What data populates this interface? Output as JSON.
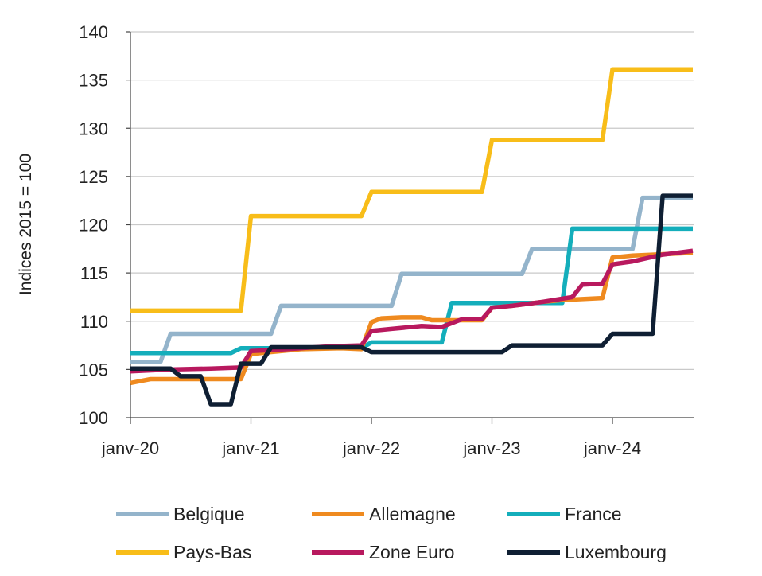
{
  "chart_data": {
    "type": "line",
    "title": "",
    "xlabel": "",
    "ylabel": "Indices 2015 = 100",
    "ylim": [
      100,
      140
    ],
    "yticks": [
      "100",
      "105",
      "110",
      "115",
      "120",
      "125",
      "130",
      "135",
      "140"
    ],
    "xlim": [
      "2020-01",
      "2024-09"
    ],
    "xticks": [
      {
        "label": "janv-20",
        "at": "2020-01"
      },
      {
        "label": "janv-21",
        "at": "2021-01"
      },
      {
        "label": "janv-22",
        "at": "2022-01"
      },
      {
        "label": "janv-23",
        "at": "2023-01"
      },
      {
        "label": "janv-24",
        "at": "2024-01"
      }
    ],
    "grid": "horizontal",
    "legend": "bottom",
    "series": [
      {
        "name": "Pays-Bas",
        "color": "#f8bd19",
        "points": [
          [
            "2020-01",
            111.1
          ],
          [
            "2020-12",
            111.1
          ],
          [
            "2021-01",
            120.9
          ],
          [
            "2021-12",
            120.9
          ],
          [
            "2022-01",
            123.4
          ],
          [
            "2022-12",
            123.4
          ],
          [
            "2023-01",
            128.8
          ],
          [
            "2023-12",
            128.8
          ],
          [
            "2024-01",
            136.1
          ],
          [
            "2024-09",
            136.1
          ]
        ]
      },
      {
        "name": "Belgique",
        "color": "#94b4cb",
        "points": [
          [
            "2020-01",
            105.8
          ],
          [
            "2020-04",
            105.8
          ],
          [
            "2020-05",
            108.7
          ],
          [
            "2020-12",
            108.7
          ],
          [
            "2021-01",
            108.7
          ],
          [
            "2021-03",
            108.7
          ],
          [
            "2021-04",
            111.6
          ],
          [
            "2021-12",
            111.6
          ],
          [
            "2022-01",
            111.6
          ],
          [
            "2022-03",
            111.6
          ],
          [
            "2022-04",
            114.9
          ],
          [
            "2022-12",
            114.9
          ],
          [
            "2023-01",
            114.9
          ],
          [
            "2023-04",
            114.9
          ],
          [
            "2023-05",
            117.5
          ],
          [
            "2023-12",
            117.5
          ],
          [
            "2024-01",
            117.5
          ],
          [
            "2024-03",
            117.5
          ],
          [
            "2024-04",
            122.8
          ],
          [
            "2024-09",
            122.8
          ]
        ]
      },
      {
        "name": "France",
        "color": "#14aebb",
        "points": [
          [
            "2020-01",
            106.7
          ],
          [
            "2020-11",
            106.7
          ],
          [
            "2020-12",
            107.2
          ],
          [
            "2021-12",
            107.2
          ],
          [
            "2022-01",
            107.8
          ],
          [
            "2022-08",
            107.8
          ],
          [
            "2022-09",
            111.9
          ],
          [
            "2023-08",
            111.9
          ],
          [
            "2023-09",
            119.6
          ],
          [
            "2024-09",
            119.6
          ]
        ]
      },
      {
        "name": "Allemagne",
        "color": "#ef8a1f",
        "points": [
          [
            "2020-01",
            103.6
          ],
          [
            "2020-02",
            103.8
          ],
          [
            "2020-03",
            104.0
          ],
          [
            "2020-12",
            104.0
          ],
          [
            "2021-01",
            106.6
          ],
          [
            "2021-06",
            107.1
          ],
          [
            "2021-10",
            107.2
          ],
          [
            "2021-12",
            107.1
          ],
          [
            "2022-01",
            109.9
          ],
          [
            "2022-02",
            110.3
          ],
          [
            "2022-04",
            110.4
          ],
          [
            "2022-06",
            110.4
          ],
          [
            "2022-07",
            110.1
          ],
          [
            "2022-12",
            110.1
          ],
          [
            "2023-01",
            111.4
          ],
          [
            "2023-03",
            111.6
          ],
          [
            "2023-06",
            112.0
          ],
          [
            "2023-08",
            112.2
          ],
          [
            "2023-10",
            112.3
          ],
          [
            "2023-12",
            112.4
          ],
          [
            "2024-01",
            116.6
          ],
          [
            "2024-03",
            116.8
          ],
          [
            "2024-05",
            116.9
          ],
          [
            "2024-09",
            117.1
          ]
        ]
      },
      {
        "name": "Zone Euro",
        "color": "#b8195e",
        "points": [
          [
            "2020-01",
            104.8
          ],
          [
            "2020-05",
            105.0
          ],
          [
            "2020-09",
            105.1
          ],
          [
            "2020-12",
            105.2
          ],
          [
            "2021-01",
            106.9
          ],
          [
            "2021-03",
            107.0
          ],
          [
            "2021-06",
            107.2
          ],
          [
            "2021-09",
            107.4
          ],
          [
            "2021-12",
            107.5
          ],
          [
            "2022-01",
            109.0
          ],
          [
            "2022-03",
            109.2
          ],
          [
            "2022-06",
            109.5
          ],
          [
            "2022-08",
            109.4
          ],
          [
            "2022-10",
            110.2
          ],
          [
            "2022-12",
            110.2
          ],
          [
            "2023-01",
            111.4
          ],
          [
            "2023-03",
            111.6
          ],
          [
            "2023-06",
            112.0
          ],
          [
            "2023-09",
            112.5
          ],
          [
            "2023-10",
            113.8
          ],
          [
            "2023-12",
            113.9
          ],
          [
            "2024-01",
            115.9
          ],
          [
            "2024-03",
            116.2
          ],
          [
            "2024-06",
            116.9
          ],
          [
            "2024-09",
            117.3
          ]
        ]
      },
      {
        "name": "Luxembourg",
        "color": "#0f1f33",
        "points": [
          [
            "2020-01",
            105.1
          ],
          [
            "2020-05",
            105.1
          ],
          [
            "2020-06",
            104.3
          ],
          [
            "2020-08",
            104.3
          ],
          [
            "2020-09",
            101.4
          ],
          [
            "2020-11",
            101.4
          ],
          [
            "2020-12",
            105.6
          ],
          [
            "2021-02",
            105.6
          ],
          [
            "2021-03",
            107.3
          ],
          [
            "2021-12",
            107.3
          ],
          [
            "2022-01",
            106.8
          ],
          [
            "2023-02",
            106.8
          ],
          [
            "2023-03",
            107.5
          ],
          [
            "2023-12",
            107.5
          ],
          [
            "2024-01",
            108.7
          ],
          [
            "2024-05",
            108.7
          ],
          [
            "2024-06",
            123.0
          ],
          [
            "2024-09",
            123.0
          ]
        ]
      }
    ],
    "legend_entries": [
      {
        "name": "Belgique",
        "color": "#94b4cb"
      },
      {
        "name": "Allemagne",
        "color": "#ef8a1f"
      },
      {
        "name": "France",
        "color": "#14aebb"
      },
      {
        "name": "Pays-Bas",
        "color": "#f8bd19"
      },
      {
        "name": "Zone Euro",
        "color": "#b8195e"
      },
      {
        "name": "Luxembourg",
        "color": "#0f1f33"
      }
    ]
  }
}
